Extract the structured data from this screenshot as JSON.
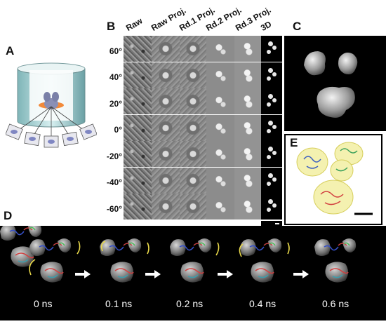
{
  "panel_letters": {
    "a": "A",
    "b": "B",
    "c": "C",
    "d": "D",
    "e": "E"
  },
  "columns": [
    "Raw",
    "Raw Proj.",
    "Rd.1 Proj.",
    "Rd.2 Proj.",
    "Rd.3 Proj.",
    "3D"
  ],
  "angles": [
    "60°",
    "40°",
    "20°",
    "0°",
    "-20°",
    "-40°",
    "-60°"
  ],
  "time_labels": [
    "0 ns",
    "0.1 ns",
    "0.2 ns",
    "0.4 ns",
    "0.6 ns"
  ]
}
